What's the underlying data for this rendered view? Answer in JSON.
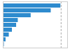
{
  "chart_data": {
    "type": "bar",
    "orientation": "horizontal",
    "categories": [
      null,
      null,
      null,
      null,
      null,
      null,
      null,
      null,
      null
    ],
    "values": [
      626,
      521,
      303,
      163,
      145,
      99,
      65,
      30,
      11
    ],
    "color": "#2e8bce",
    "xlim": [
      0,
      700
    ],
    "tick_labels": false,
    "grid": false,
    "reference_line": {
      "x": 630,
      "color": "#aaaaaa",
      "line_style": "dashed"
    }
  }
}
